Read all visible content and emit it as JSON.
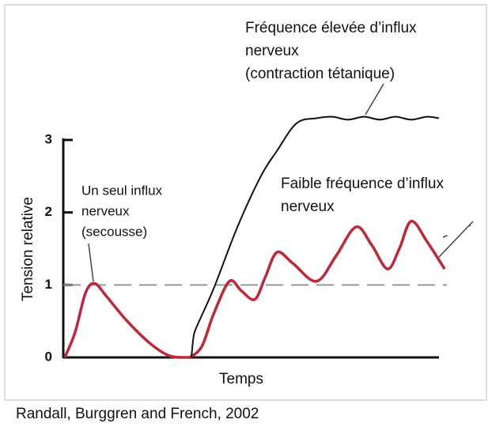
{
  "chart_data": {
    "type": "line",
    "xlabel": "Temps",
    "ylabel": "Tension relative",
    "source": "Randall, Burggren and French, 2002",
    "xlim": [
      0,
      100
    ],
    "ylim": [
      0,
      3
    ],
    "yticks": [
      0,
      1,
      2,
      3
    ],
    "reference_line": 1,
    "annotations": [
      {
        "lines": [
          "Un seul influx",
          "nerveux",
          "(secousse)"
        ]
      },
      {
        "lines": [
          "Faible fréquence d’influx",
          "nerveux"
        ]
      },
      {
        "lines": [
          "Fréquence élevée d’influx",
          "nerveux",
          "(contraction tétanique)"
        ]
      }
    ],
    "series": [
      {
        "color": "#c0283a",
        "x": [
          0.4,
          3.1,
          5.8,
          8.2,
          11.3,
          16.5,
          22.7,
          27.8,
          33
        ],
        "values": [
          0,
          0.35,
          0.89,
          1.02,
          0.84,
          0.51,
          0.19,
          0.02,
          0
        ]
      },
      {
        "color": "#c0283a",
        "x": [
          33,
          36.1,
          39.2,
          43.3,
          46.4,
          49.9,
          52.6,
          55.7,
          59.8,
          66,
          71.1,
          76.3,
          80.4,
          84.5,
          87.6,
          90.7,
          94.8,
          99.4
        ],
        "values": [
          0,
          0.15,
          0.6,
          1.05,
          0.92,
          0.8,
          1.1,
          1.45,
          1.3,
          1.05,
          1.4,
          1.8,
          1.55,
          1.22,
          1.5,
          1.88,
          1.6,
          1.22
        ]
      },
      {
        "color": "#111111",
        "x": [
          33.4,
          34,
          35,
          39.2,
          45.4,
          51.5,
          55.7,
          60.8,
          66,
          70.1,
          74.2,
          78.4,
          82.5,
          86.6,
          90.7,
          94.8,
          97.9
        ],
        "values": [
          0,
          0.3,
          0.45,
          0.95,
          1.8,
          2.5,
          2.85,
          3.23,
          3.3,
          3.32,
          3.28,
          3.32,
          3.28,
          3.32,
          3.28,
          3.32,
          3.3
        ]
      }
    ]
  }
}
